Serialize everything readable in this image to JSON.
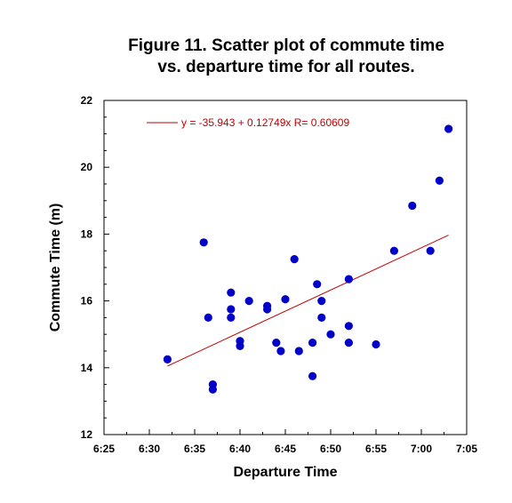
{
  "chart_data": {
    "type": "scatter",
    "title_lines": [
      "Figure 11. Scatter plot of commute time",
      "vs. departure time for all routes."
    ],
    "xlabel": "Departure Time",
    "ylabel": "Commute Time (m)",
    "x_unit": "clock time",
    "xlim": [
      "6:25",
      "7:05"
    ],
    "ylim": [
      12,
      22
    ],
    "x_ticks": [
      "6:25",
      "6:30",
      "6:35",
      "6:40",
      "6:45",
      "6:50",
      "6:55",
      "7:00",
      "7:05"
    ],
    "y_ticks": [
      "12",
      "14",
      "16",
      "18",
      "20",
      "22"
    ],
    "grid": false,
    "legend_position": "top-left",
    "marker_color": "#0000c8",
    "fit_line_color": "#c00000",
    "fit_line": {
      "label": "y = -35.943 + 0.12749x   R= 0.60609",
      "x_range": [
        "6:32",
        "7:03"
      ],
      "y_values": [
        14.05,
        17.97
      ]
    },
    "points": [
      {
        "x": "6:32",
        "y": 14.25
      },
      {
        "x": "6:36",
        "y": 17.75
      },
      {
        "x": "6:36.5",
        "y": 15.5
      },
      {
        "x": "6:37",
        "y": 13.5
      },
      {
        "x": "6:37",
        "y": 13.35
      },
      {
        "x": "6:39",
        "y": 16.25
      },
      {
        "x": "6:39",
        "y": 15.75
      },
      {
        "x": "6:39",
        "y": 15.5
      },
      {
        "x": "6:40",
        "y": 14.8
      },
      {
        "x": "6:40",
        "y": 14.65
      },
      {
        "x": "6:41",
        "y": 16.0
      },
      {
        "x": "6:43",
        "y": 15.85
      },
      {
        "x": "6:43",
        "y": 15.75
      },
      {
        "x": "6:44",
        "y": 14.75
      },
      {
        "x": "6:44.5",
        "y": 14.5
      },
      {
        "x": "6:45",
        "y": 16.05
      },
      {
        "x": "6:46",
        "y": 17.25
      },
      {
        "x": "6:46.5",
        "y": 14.5
      },
      {
        "x": "6:48",
        "y": 14.75
      },
      {
        "x": "6:48",
        "y": 13.75
      },
      {
        "x": "6:48.5",
        "y": 16.5
      },
      {
        "x": "6:49",
        "y": 16.0
      },
      {
        "x": "6:49",
        "y": 15.5
      },
      {
        "x": "6:50",
        "y": 15.0
      },
      {
        "x": "6:52",
        "y": 16.65
      },
      {
        "x": "6:52",
        "y": 15.25
      },
      {
        "x": "6:52",
        "y": 14.75
      },
      {
        "x": "6:55",
        "y": 14.7
      },
      {
        "x": "6:57",
        "y": 17.5
      },
      {
        "x": "6:59",
        "y": 18.85
      },
      {
        "x": "7:01",
        "y": 17.5
      },
      {
        "x": "7:02",
        "y": 19.6
      },
      {
        "x": "7:03",
        "y": 21.15
      }
    ]
  }
}
